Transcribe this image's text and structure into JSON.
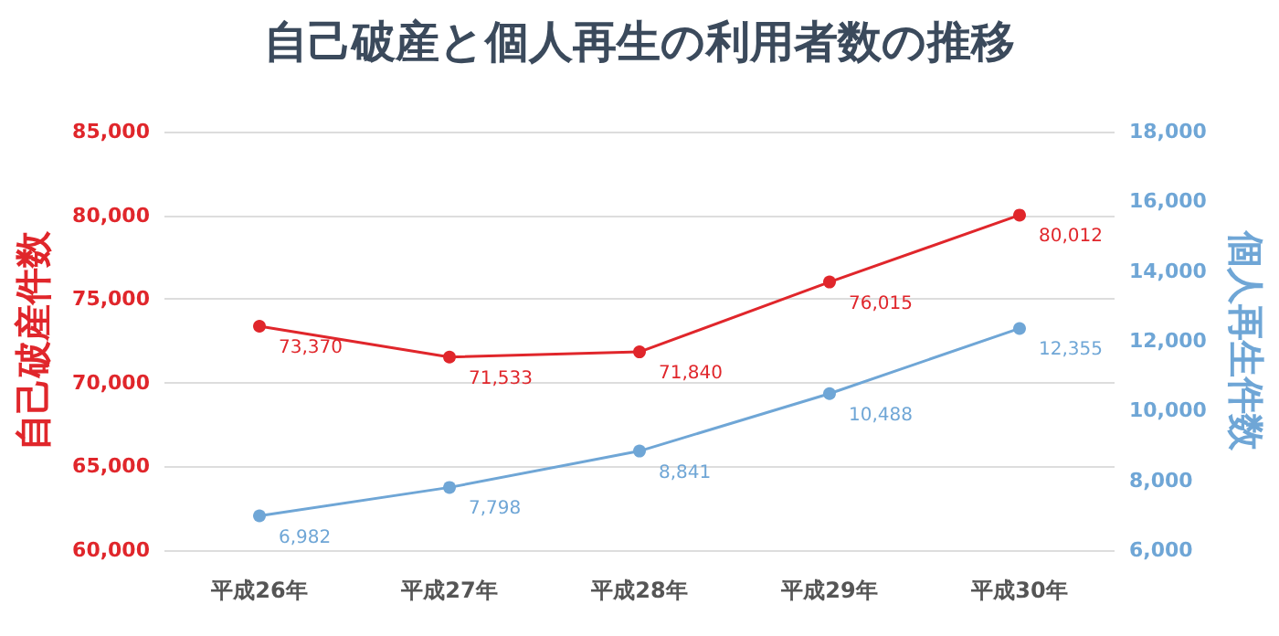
{
  "chart_data": {
    "type": "line",
    "title": "自己破産と個人再生の利用者数の推移",
    "categories": [
      "平成26年",
      "平成27年",
      "平成28年",
      "平成29年",
      "平成30年"
    ],
    "series": [
      {
        "color": "#e0262b",
        "values": [
          73370,
          71533,
          71840,
          76015,
          80012
        ],
        "value_labels": [
          "73,370",
          "71,533",
          "71,840",
          "76,015",
          "80,012"
        ]
      },
      {
        "color": "#6fa6d6",
        "values": [
          6982,
          7798,
          8841,
          10488,
          12355
        ],
        "value_labels": [
          "6,982",
          "7,798",
          "8,841",
          "10,488",
          "12,355"
        ],
        "axis": "y2"
      }
    ],
    "ylabel": "自己破産件数",
    "y2label": "個人再生件数",
    "ylim": [
      60000,
      85000
    ],
    "yticks": [
      {
        "value": 60000,
        "label": "60,000"
      },
      {
        "value": 65000,
        "label": "65,000"
      },
      {
        "value": 70000,
        "label": "70,000"
      },
      {
        "value": 75000,
        "label": "75,000"
      },
      {
        "value": 80000,
        "label": "80,000"
      },
      {
        "value": 85000,
        "label": "85,000"
      }
    ],
    "y2lim": [
      6000,
      18000
    ],
    "y2ticks": [
      {
        "value": 6000,
        "label": "6,000"
      },
      {
        "value": 8000,
        "label": "8,000"
      },
      {
        "value": 10000,
        "label": "10,000"
      },
      {
        "value": 12000,
        "label": "12,000"
      },
      {
        "value": 14000,
        "label": "14,000"
      },
      {
        "value": 16000,
        "label": "16,000"
      },
      {
        "value": 18000,
        "label": "18,000"
      }
    ],
    "grid": "y",
    "marker": "circle",
    "line_style": "solid"
  }
}
